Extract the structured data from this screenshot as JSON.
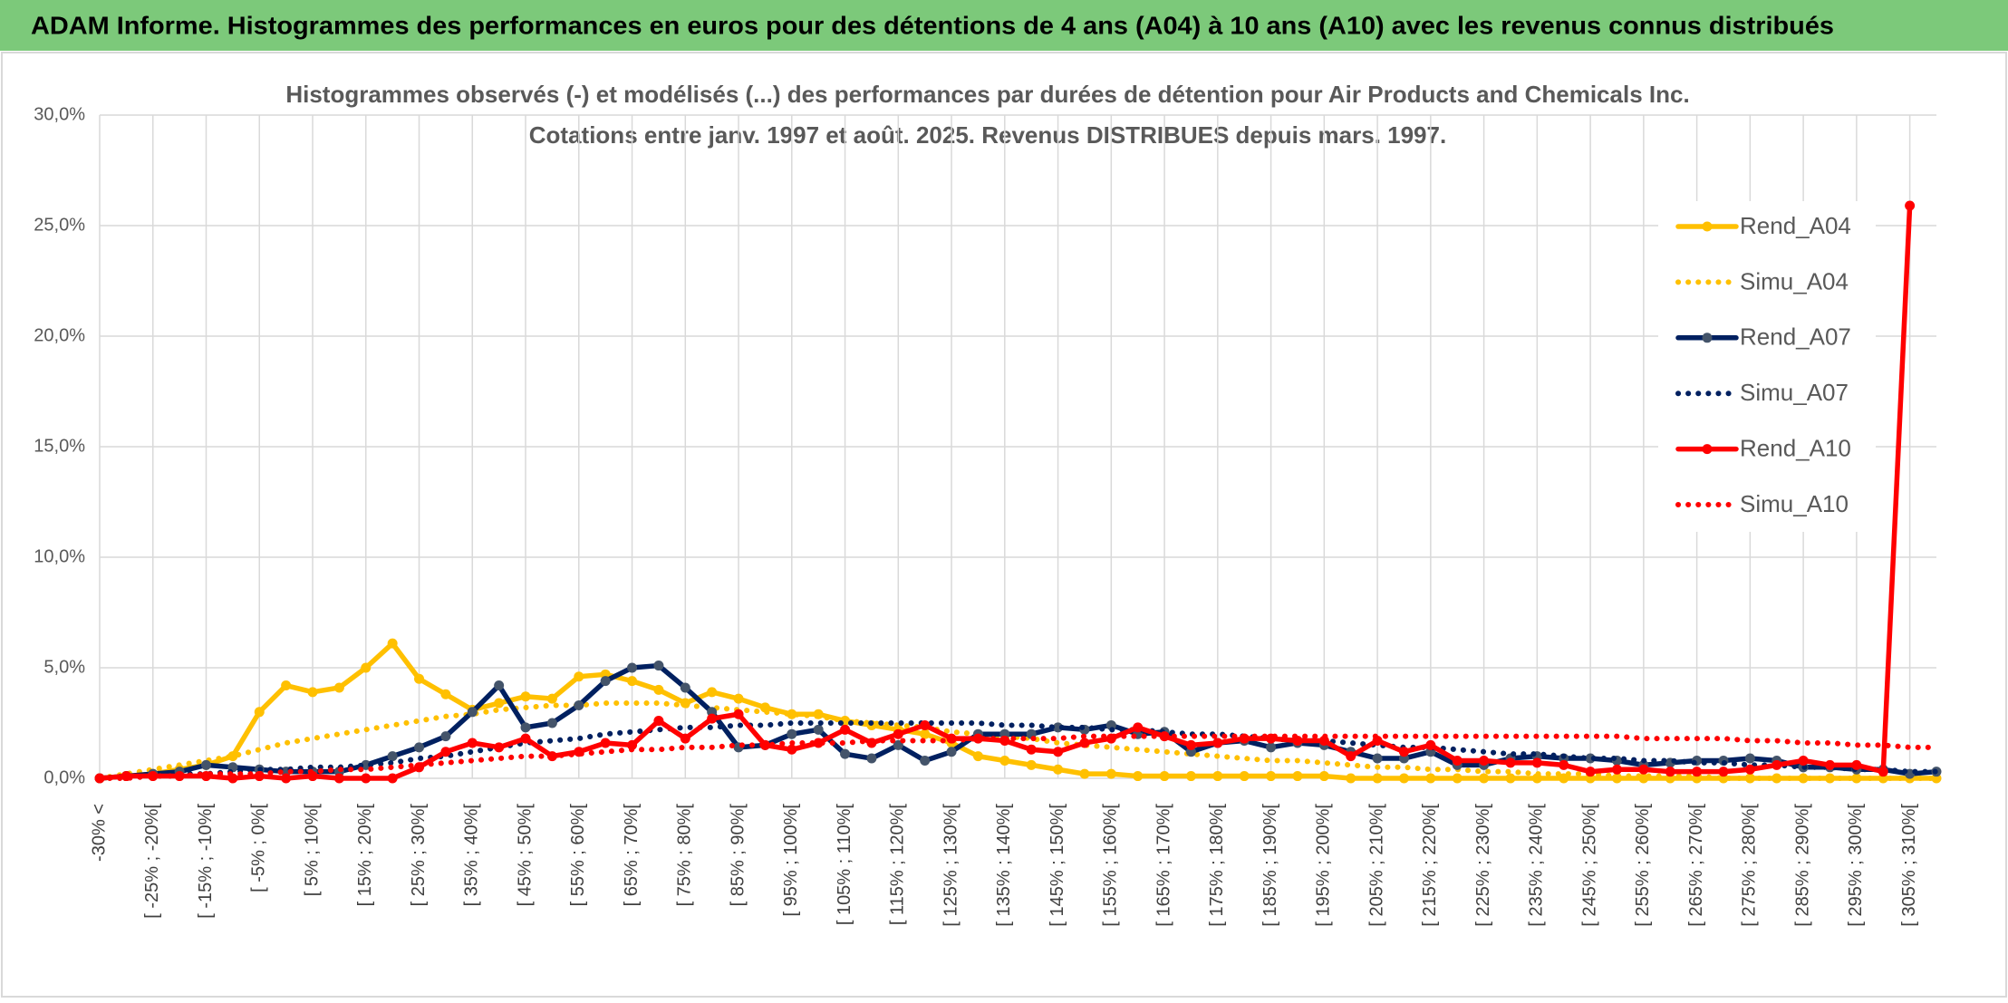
{
  "page_title": "ADAM Informe. Histogrammes des performances en euros pour des détentions de 4 ans (A04) à 10 ans (A10) avec les revenus connus distribués",
  "chart_data": {
    "type": "line",
    "title": "Histogrammes observés (-) et modélisés (...) des performances par durées de détention pour Air Products and Chemicals Inc.",
    "subtitle": "Cotations entre janv. 1997 et août. 2025. Revenus DISTRIBUES depuis mars. 1997.",
    "categories": [
      "-30% <",
      null,
      "[ -25% ; -20%[",
      null,
      "[ -15% ; -10%[",
      null,
      "[ -5% ; 0%[",
      null,
      "[ 5% ; 10%[",
      null,
      "[ 15% ; 20%[",
      null,
      "[ 25% ; 30%[",
      null,
      "[ 35% ; 40%[",
      null,
      "[ 45% ; 50%[",
      null,
      "[ 55% ; 60%[",
      null,
      "[ 65% ; 70%[",
      null,
      "[ 75% ; 80%[",
      null,
      "[ 85% ; 90%[",
      null,
      "[ 95% ; 100%[",
      null,
      "[ 105% ; 110%[",
      null,
      "[ 115% ; 120%[",
      null,
      "[ 125% ; 130%[",
      null,
      "[ 135% ; 140%[",
      null,
      "[ 145% ; 150%[",
      null,
      "[ 155% ; 160%[",
      null,
      "[ 165% ; 170%[",
      null,
      "[ 175% ; 180%[",
      null,
      "[ 185% ; 190%[",
      null,
      "[ 195% ; 200%[",
      null,
      "[ 205% ; 210%[",
      null,
      "[ 215% ; 220%[",
      null,
      "[ 225% ; 230%[",
      null,
      "[ 235% ; 240%[",
      null,
      "[ 245% ; 250%[",
      null,
      "[ 255% ; 260%[",
      null,
      "[ 265% ; 270%[",
      null,
      "[ 275% ; 280%[",
      null,
      "[ 285% ; 290%[",
      null,
      "[ 295% ; 300%[",
      null,
      "[ 305% ; 310%[",
      null
    ],
    "series": [
      {
        "name": "Rend_A04",
        "color": "#FFC000",
        "style": "solid",
        "values": [
          0,
          0.1,
          0.2,
          0.4,
          0.6,
          1.0,
          3.0,
          4.2,
          3.9,
          4.1,
          5.0,
          6.1,
          4.5,
          3.8,
          3.1,
          3.4,
          3.7,
          3.6,
          4.6,
          4.7,
          4.4,
          4.0,
          3.4,
          3.9,
          3.6,
          3.2,
          2.9,
          2.9,
          2.6,
          2.4,
          2.2,
          2.0,
          1.6,
          1.0,
          0.8,
          0.6,
          0.4,
          0.2,
          0.2,
          0.1,
          0.1,
          0.1,
          0.1,
          0.1,
          0.1,
          0.1,
          0.1,
          0,
          0,
          0,
          0,
          0,
          0,
          0,
          0,
          0,
          0,
          0,
          0,
          0,
          0,
          0,
          0,
          0,
          0,
          0,
          0,
          0,
          0,
          0
        ]
      },
      {
        "name": "Simu_A04",
        "color": "#FFC000",
        "style": "dotted",
        "values": [
          0,
          0.2,
          0.4,
          0.6,
          0.8,
          1.0,
          1.3,
          1.6,
          1.8,
          2.0,
          2.2,
          2.4,
          2.6,
          2.8,
          2.9,
          3.1,
          3.2,
          3.3,
          3.3,
          3.4,
          3.4,
          3.4,
          3.3,
          3.2,
          3.1,
          3.0,
          2.9,
          2.8,
          2.6,
          2.5,
          2.4,
          2.3,
          2.1,
          2.0,
          1.9,
          1.8,
          1.6,
          1.5,
          1.4,
          1.3,
          1.2,
          1.1,
          1.0,
          0.9,
          0.8,
          0.8,
          0.7,
          0.6,
          0.5,
          0.5,
          0.4,
          0.4,
          0.3,
          0.3,
          0.2,
          0.2,
          0.2,
          0.1,
          0.1,
          0.1,
          0.1,
          0,
          0,
          0,
          0,
          0,
          0,
          0,
          0,
          0
        ]
      },
      {
        "name": "Rend_A07",
        "color": "#002060",
        "marker_color": "#44546A",
        "style": "solid",
        "values": [
          0,
          0.1,
          0.2,
          0.3,
          0.6,
          0.5,
          0.4,
          0.3,
          0.3,
          0.3,
          0.6,
          1.0,
          1.4,
          1.9,
          3.0,
          4.2,
          2.3,
          2.5,
          3.3,
          4.4,
          5.0,
          5.1,
          4.1,
          3.0,
          1.4,
          1.5,
          2.0,
          2.2,
          1.1,
          0.9,
          1.5,
          0.8,
          1.2,
          2.0,
          2.0,
          2.0,
          2.3,
          2.2,
          2.4,
          2.0,
          2.1,
          1.2,
          1.6,
          1.7,
          1.4,
          1.6,
          1.5,
          1.2,
          0.9,
          0.9,
          1.2,
          0.6,
          0.6,
          0.9,
          1.0,
          0.9,
          0.9,
          0.8,
          0.6,
          0.7,
          0.8,
          0.8,
          0.9,
          0.8,
          0.5,
          0.5,
          0.4,
          0.4,
          0.2,
          0.3
        ]
      },
      {
        "name": "Simu_A07",
        "color": "#002060",
        "style": "dotted",
        "values": [
          0,
          0.1,
          0.1,
          0.2,
          0.2,
          0.3,
          0.4,
          0.4,
          0.5,
          0.5,
          0.6,
          0.7,
          0.9,
          1.0,
          1.2,
          1.4,
          1.6,
          1.7,
          1.8,
          2.0,
          2.1,
          2.2,
          2.3,
          2.3,
          2.4,
          2.4,
          2.5,
          2.5,
          2.5,
          2.5,
          2.5,
          2.5,
          2.5,
          2.5,
          2.4,
          2.4,
          2.3,
          2.3,
          2.2,
          2.2,
          2.1,
          2.0,
          2.0,
          1.9,
          1.8,
          1.7,
          1.7,
          1.6,
          1.5,
          1.4,
          1.4,
          1.3,
          1.2,
          1.1,
          1.1,
          1.0,
          0.9,
          0.9,
          0.8,
          0.8,
          0.7,
          0.7,
          0.6,
          0.6,
          0.5,
          0.5,
          0.4,
          0.4,
          0.3,
          0.3
        ]
      },
      {
        "name": "Rend_A10",
        "color": "#FF0000",
        "style": "solid",
        "values": [
          0,
          0.1,
          0.1,
          0.1,
          0.1,
          0,
          0.1,
          0,
          0.1,
          0,
          0,
          0,
          0.5,
          1.2,
          1.6,
          1.4,
          1.8,
          1.0,
          1.2,
          1.6,
          1.5,
          2.6,
          1.8,
          2.7,
          2.9,
          1.5,
          1.3,
          1.6,
          2.2,
          1.6,
          2.0,
          2.4,
          1.8,
          1.8,
          1.7,
          1.3,
          1.2,
          1.6,
          1.8,
          2.3,
          1.9,
          1.5,
          1.6,
          1.8,
          1.8,
          1.7,
          1.7,
          1.0,
          1.7,
          1.2,
          1.5,
          0.8,
          0.8,
          0.7,
          0.7,
          0.6,
          0.3,
          0.4,
          0.4,
          0.3,
          0.3,
          0.3,
          0.4,
          0.6,
          0.8,
          0.6,
          0.6,
          0.3,
          25.9,
          null
        ]
      },
      {
        "name": "Simu_A10",
        "color": "#FF0000",
        "style": "dotted",
        "values": [
          0,
          0,
          0.1,
          0.1,
          0.2,
          0.2,
          0.2,
          0.3,
          0.3,
          0.4,
          0.4,
          0.5,
          0.6,
          0.7,
          0.8,
          0.9,
          1.0,
          1.0,
          1.1,
          1.2,
          1.3,
          1.3,
          1.4,
          1.4,
          1.5,
          1.5,
          1.6,
          1.6,
          1.6,
          1.7,
          1.7,
          1.7,
          1.7,
          1.8,
          1.8,
          1.8,
          1.8,
          1.9,
          1.9,
          1.9,
          1.9,
          1.9,
          1.9,
          1.9,
          1.9,
          1.9,
          1.9,
          1.9,
          1.9,
          1.9,
          1.9,
          1.9,
          1.9,
          1.9,
          1.9,
          1.9,
          1.9,
          1.9,
          1.8,
          1.8,
          1.8,
          1.8,
          1.7,
          1.7,
          1.6,
          1.6,
          1.5,
          1.5,
          1.4,
          1.4
        ]
      }
    ],
    "ylim": [
      0,
      30
    ],
    "yticks": [
      {
        "value": 0,
        "label": "0,0%"
      },
      {
        "value": 5,
        "label": "5,0%"
      },
      {
        "value": 10,
        "label": "10,0%"
      },
      {
        "value": 15,
        "label": "15,0%"
      },
      {
        "value": 20,
        "label": "20,0%"
      },
      {
        "value": 25,
        "label": "25,0%"
      },
      {
        "value": 30,
        "label": "30,0%"
      }
    ],
    "grid": true,
    "legend": "right"
  }
}
